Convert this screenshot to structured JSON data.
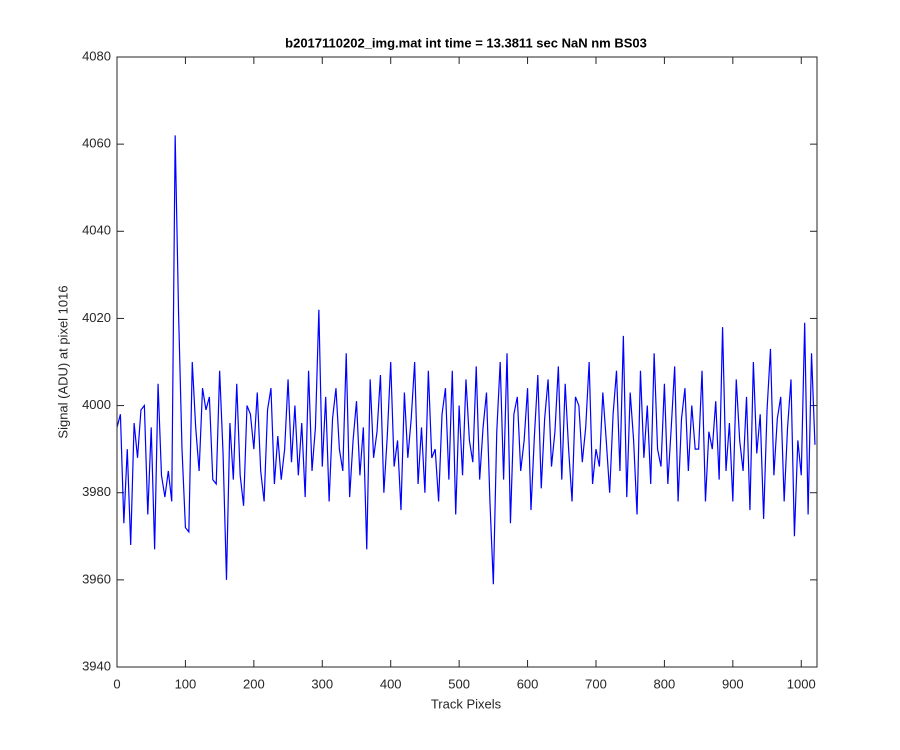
{
  "chart_data": {
    "type": "line",
    "title": "b2017110202_img.mat int time = 13.3811 sec  NaN nm BS03",
    "x_label": "Track Pixels",
    "y_label": "Signal (ADU) at pixel 1016",
    "xlim": [
      0,
      1023
    ],
    "ylim": [
      3940,
      4080
    ],
    "xticks": [
      0,
      100,
      200,
      300,
      400,
      500,
      600,
      700,
      800,
      900,
      1000
    ],
    "yticks": [
      3940,
      3960,
      3980,
      4000,
      4020,
      4040,
      4060,
      4080
    ],
    "x": [
      0,
      5,
      10,
      15,
      20,
      25,
      30,
      35,
      40,
      45,
      50,
      55,
      60,
      65,
      70,
      75,
      80,
      85,
      90,
      95,
      100,
      105,
      110,
      115,
      120,
      125,
      130,
      135,
      140,
      145,
      150,
      155,
      160,
      165,
      170,
      175,
      180,
      185,
      190,
      195,
      200,
      205,
      210,
      215,
      220,
      225,
      230,
      235,
      240,
      245,
      250,
      255,
      260,
      265,
      270,
      275,
      280,
      285,
      290,
      295,
      300,
      305,
      310,
      315,
      320,
      325,
      330,
      335,
      340,
      345,
      350,
      355,
      360,
      365,
      370,
      375,
      380,
      385,
      390,
      395,
      400,
      405,
      410,
      415,
      420,
      425,
      430,
      435,
      440,
      445,
      450,
      455,
      460,
      465,
      470,
      475,
      480,
      485,
      490,
      495,
      500,
      505,
      510,
      515,
      520,
      525,
      530,
      535,
      540,
      545,
      550,
      555,
      560,
      565,
      570,
      575,
      580,
      585,
      590,
      595,
      600,
      605,
      610,
      615,
      620,
      625,
      630,
      635,
      640,
      645,
      650,
      655,
      660,
      665,
      670,
      675,
      680,
      685,
      690,
      695,
      700,
      705,
      710,
      715,
      720,
      725,
      730,
      735,
      740,
      745,
      750,
      755,
      760,
      765,
      770,
      775,
      780,
      785,
      790,
      795,
      800,
      805,
      810,
      815,
      820,
      825,
      830,
      835,
      840,
      845,
      850,
      855,
      860,
      865,
      870,
      875,
      880,
      885,
      890,
      895,
      900,
      905,
      910,
      915,
      920,
      925,
      930,
      935,
      940,
      945,
      950,
      955,
      960,
      965,
      970,
      975,
      980,
      985,
      990,
      995,
      1000,
      1005,
      1010,
      1015,
      1020
    ],
    "series": [
      {
        "name": "signal",
        "color": "#0000ff",
        "values": [
          3995,
          3998,
          3973,
          3990,
          3968,
          3996,
          3988,
          3999,
          4000,
          3975,
          3995,
          3967,
          4005,
          3984,
          3979,
          3985,
          3978,
          4062,
          4021,
          3990,
          3972,
          3971,
          4010,
          3995,
          3985,
          4004,
          3999,
          4002,
          3983,
          3982,
          4008,
          3989,
          3960,
          3996,
          3983,
          4005,
          3984,
          3977,
          4000,
          3998,
          3990,
          4003,
          3985,
          3978,
          3999,
          4004,
          3982,
          3993,
          3983,
          3990,
          4006,
          3987,
          4000,
          3984,
          3996,
          3979,
          4008,
          3985,
          3995,
          4022,
          3986,
          4002,
          3978,
          3997,
          4004,
          3990,
          3985,
          4012,
          3979,
          3992,
          4001,
          3984,
          3995,
          3967,
          4006,
          3988,
          3994,
          4007,
          3980,
          3993,
          4010,
          3986,
          3992,
          3976,
          4003,
          3988,
          3997,
          4010,
          3982,
          3995,
          3980,
          4008,
          3988,
          3990,
          3978,
          3998,
          4004,
          3983,
          4008,
          3975,
          4000,
          3984,
          4006,
          3992,
          3987,
          4009,
          3983,
          3995,
          4003,
          3978,
          3959,
          3994,
          4010,
          3983,
          4012,
          3973,
          3998,
          4002,
          3985,
          3992,
          4004,
          3976,
          3993,
          4007,
          3981,
          3997,
          4006,
          3986,
          3994,
          4009,
          3983,
          4005,
          3990,
          3978,
          4002,
          4000,
          3987,
          3995,
          4010,
          3982,
          3990,
          3986,
          4003,
          3992,
          3980,
          3998,
          4008,
          3985,
          4016,
          3979,
          4003,
          3992,
          3975,
          4008,
          3988,
          4000,
          3982,
          4012,
          3990,
          3986,
          4005,
          3982,
          3995,
          4009,
          3978,
          3997,
          4004,
          3985,
          4000,
          3990,
          3990,
          4008,
          3978,
          3994,
          3990,
          4001,
          3983,
          4018,
          3985,
          3996,
          3978,
          4006,
          3992,
          3985,
          4002,
          3976,
          4010,
          3989,
          3998,
          3974,
          3999,
          4013,
          3984,
          3997,
          4002,
          3978,
          3995,
          4006,
          3970,
          3992,
          3984,
          4019,
          3975,
          4012,
          3991
        ]
      }
    ]
  }
}
